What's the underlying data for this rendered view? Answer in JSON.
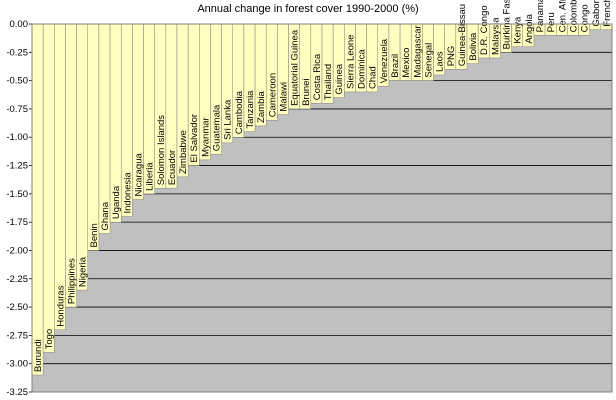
{
  "chart_data": {
    "type": "bar",
    "title": "Annual change in forest cover 1990-2000 (%)",
    "xlabel": "",
    "ylabel": "",
    "ylim": [
      -3.25,
      0
    ],
    "yticks": [
      "0.00",
      "-0.25",
      "-0.50",
      "-0.75",
      "-1.00",
      "-1.25",
      "-1.50",
      "-1.75",
      "-2.00",
      "-2.25",
      "-2.50",
      "-2.75",
      "-3.00",
      "-3.25"
    ],
    "grid": true,
    "legend": "none",
    "colors": {
      "plot_background": "#c0c0c0",
      "bar_fill": "#ffffc0",
      "bar_stroke": "#808080",
      "gridline": "#000000"
    },
    "categories": [
      "Burundi",
      "Togo",
      "Honduras",
      "Philippines",
      "Nigeria",
      "Benin",
      "Ghana",
      "Uganda",
      "Indonesia",
      "Nicaragua",
      "Liberia",
      "Solomon Islands",
      "Ecuador",
      "Zimbabwe",
      "El Salvador",
      "Myanmar",
      "Guatemala",
      "Sri Lanka",
      "Cambodia",
      "Tanzania",
      "Zambia",
      "Cameroon",
      "Malawi",
      "Equatorial Guinea",
      "Brunei",
      "Costa Rica",
      "Thailand",
      "Guinea",
      "Sierra Leone",
      "Dominica",
      "Chad",
      "Venezuela",
      "Brazil",
      "Mexico",
      "Madagascar",
      "Senegal",
      "Laos",
      "PNG",
      "Guinea-Bissau",
      "Bolivia",
      "D.R. Congo",
      "Malaysia",
      "Burkina Faso",
      "Kenya",
      "Angola",
      "Panama",
      "Peru",
      "Cen. African Rep.",
      "Colombia",
      "Congo",
      "Gabon",
      "French Guiana"
    ],
    "values": [
      -3.1,
      -2.9,
      -2.7,
      -2.5,
      -2.35,
      -2.0,
      -1.85,
      -1.75,
      -1.7,
      -1.55,
      -1.5,
      -1.45,
      -1.45,
      -1.35,
      -1.25,
      -1.2,
      -1.15,
      -1.05,
      -1.0,
      -0.95,
      -0.9,
      -0.85,
      -0.8,
      -0.75,
      -0.75,
      -0.7,
      -0.7,
      -0.65,
      -0.6,
      -0.6,
      -0.6,
      -0.55,
      -0.5,
      -0.5,
      -0.5,
      -0.5,
      -0.45,
      -0.4,
      -0.4,
      -0.35,
      -0.3,
      -0.3,
      -0.25,
      -0.2,
      -0.2,
      -0.1,
      -0.1,
      -0.1,
      -0.1,
      -0.1,
      -0.05,
      -0.05
    ]
  }
}
